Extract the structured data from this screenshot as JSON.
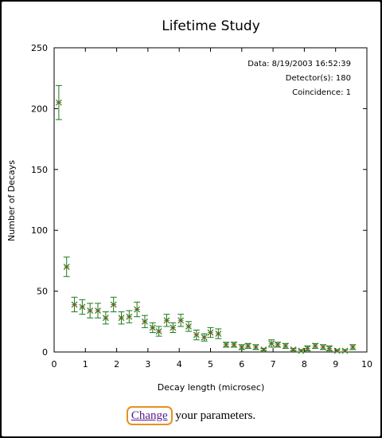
{
  "chart_data": {
    "type": "scatter",
    "title": "Lifetime Study",
    "xlabel": "Decay length (microsec)",
    "ylabel": "Number of Decays",
    "xlim": [
      0,
      10
    ],
    "ylim": [
      0,
      250
    ],
    "xticks": [
      "0",
      "1",
      "2",
      "3",
      "4",
      "5",
      "6",
      "7",
      "8",
      "9",
      "10"
    ],
    "yticks": [
      "0",
      "50",
      "100",
      "150",
      "200",
      "250"
    ],
    "grid": false,
    "marker_color": "#2e7d1c",
    "errorbar_color": "#1a7a1a",
    "annotations": [
      "Data: 8/19/2003 16:52:39",
      "Detector(s): 180",
      "Coincidence: 1"
    ],
    "points": [
      {
        "x": 0.15,
        "y": 205,
        "err": 14
      },
      {
        "x": 0.4,
        "y": 70,
        "err": 8
      },
      {
        "x": 0.65,
        "y": 39,
        "err": 6
      },
      {
        "x": 0.9,
        "y": 37,
        "err": 6
      },
      {
        "x": 1.15,
        "y": 34,
        "err": 6
      },
      {
        "x": 1.4,
        "y": 34,
        "err": 6
      },
      {
        "x": 1.65,
        "y": 28,
        "err": 5
      },
      {
        "x": 1.9,
        "y": 39,
        "err": 6
      },
      {
        "x": 2.15,
        "y": 28,
        "err": 5
      },
      {
        "x": 2.4,
        "y": 29,
        "err": 5
      },
      {
        "x": 2.65,
        "y": 35,
        "err": 6
      },
      {
        "x": 2.9,
        "y": 25,
        "err": 5
      },
      {
        "x": 3.15,
        "y": 20,
        "err": 4
      },
      {
        "x": 3.35,
        "y": 17,
        "err": 4
      },
      {
        "x": 3.6,
        "y": 26,
        "err": 5
      },
      {
        "x": 3.8,
        "y": 20,
        "err": 4
      },
      {
        "x": 4.05,
        "y": 26,
        "err": 5
      },
      {
        "x": 4.3,
        "y": 21,
        "err": 4
      },
      {
        "x": 4.55,
        "y": 14,
        "err": 4
      },
      {
        "x": 4.8,
        "y": 12,
        "err": 3
      },
      {
        "x": 5.0,
        "y": 16,
        "err": 4
      },
      {
        "x": 5.25,
        "y": 15,
        "err": 4
      },
      {
        "x": 5.5,
        "y": 6,
        "err": 2
      },
      {
        "x": 5.75,
        "y": 6,
        "err": 2
      },
      {
        "x": 6.0,
        "y": 4,
        "err": 2
      },
      {
        "x": 6.2,
        "y": 5,
        "err": 2
      },
      {
        "x": 6.45,
        "y": 4,
        "err": 2
      },
      {
        "x": 6.7,
        "y": 2,
        "err": 1
      },
      {
        "x": 6.95,
        "y": 7,
        "err": 3
      },
      {
        "x": 7.15,
        "y": 6,
        "err": 2
      },
      {
        "x": 7.4,
        "y": 5,
        "err": 2
      },
      {
        "x": 7.65,
        "y": 2,
        "err": 1
      },
      {
        "x": 7.9,
        "y": 1,
        "err": 1
      },
      {
        "x": 8.1,
        "y": 3,
        "err": 2
      },
      {
        "x": 8.35,
        "y": 5,
        "err": 2
      },
      {
        "x": 8.6,
        "y": 4,
        "err": 2
      },
      {
        "x": 8.8,
        "y": 3,
        "err": 2
      },
      {
        "x": 9.05,
        "y": 1,
        "err": 1
      },
      {
        "x": 9.3,
        "y": 1,
        "err": 1
      },
      {
        "x": 9.55,
        "y": 4,
        "err": 2
      }
    ]
  },
  "footer": {
    "link_label": "Change",
    "rest_text": " your parameters."
  }
}
